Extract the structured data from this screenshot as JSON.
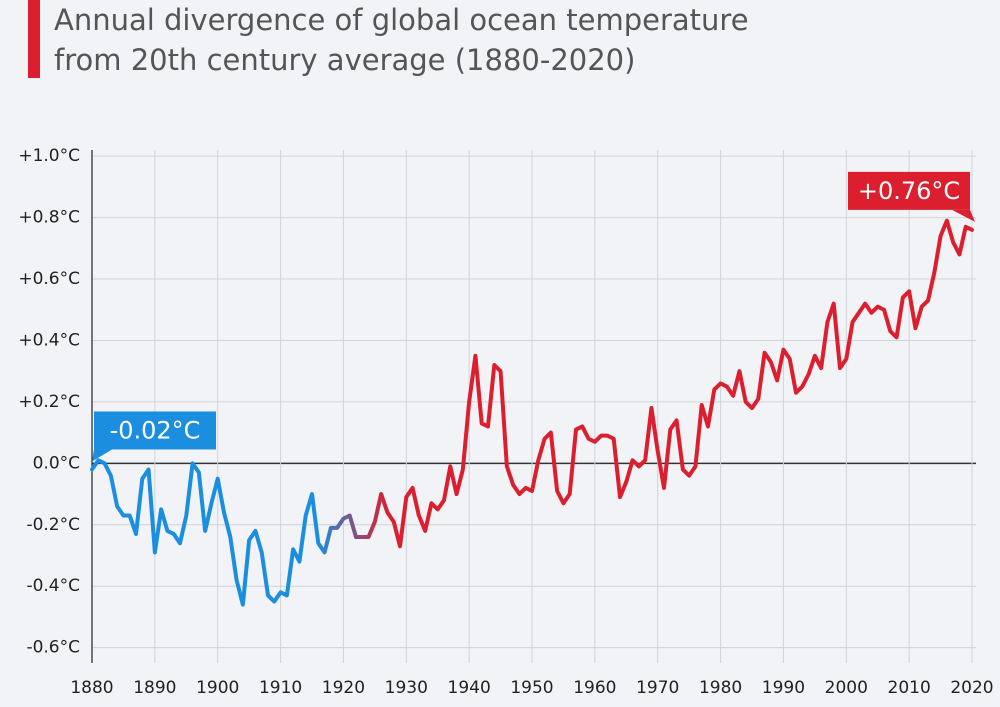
{
  "chart_data": {
    "type": "line",
    "title": [
      "Annual divergence of global ocean temperature",
      "from 20th century average (1880-2020)"
    ],
    "x": [
      1880,
      1881,
      1882,
      1883,
      1884,
      1885,
      1886,
      1887,
      1888,
      1889,
      1890,
      1891,
      1892,
      1893,
      1894,
      1895,
      1896,
      1897,
      1898,
      1899,
      1900,
      1901,
      1902,
      1903,
      1904,
      1905,
      1906,
      1907,
      1908,
      1909,
      1910,
      1911,
      1912,
      1913,
      1914,
      1915,
      1916,
      1917,
      1918,
      1919,
      1920,
      1921,
      1922,
      1923,
      1924,
      1925,
      1926,
      1927,
      1928,
      1929,
      1930,
      1931,
      1932,
      1933,
      1934,
      1935,
      1936,
      1937,
      1938,
      1939,
      1940,
      1941,
      1942,
      1943,
      1944,
      1945,
      1946,
      1947,
      1948,
      1949,
      1950,
      1951,
      1952,
      1953,
      1954,
      1955,
      1956,
      1957,
      1958,
      1959,
      1960,
      1961,
      1962,
      1963,
      1964,
      1965,
      1966,
      1967,
      1968,
      1969,
      1970,
      1971,
      1972,
      1973,
      1974,
      1975,
      1976,
      1977,
      1978,
      1979,
      1980,
      1981,
      1982,
      1983,
      1984,
      1985,
      1986,
      1987,
      1988,
      1989,
      1990,
      1991,
      1992,
      1993,
      1994,
      1995,
      1996,
      1997,
      1998,
      1999,
      2000,
      2001,
      2002,
      2003,
      2004,
      2005,
      2006,
      2007,
      2008,
      2009,
      2010,
      2011,
      2012,
      2013,
      2014,
      2015,
      2016,
      2017,
      2018,
      2019,
      2020
    ],
    "series": [
      {
        "gradient_colors": [
          "#1b8ee0",
          "#dc1f2e"
        ],
        "values": [
          -0.02,
          0.01,
          0.0,
          -0.04,
          -0.14,
          -0.17,
          -0.17,
          -0.23,
          -0.05,
          -0.02,
          -0.29,
          -0.15,
          -0.22,
          -0.23,
          -0.26,
          -0.17,
          0.0,
          -0.03,
          -0.22,
          -0.13,
          -0.05,
          -0.16,
          -0.24,
          -0.38,
          -0.46,
          -0.25,
          -0.22,
          -0.29,
          -0.43,
          -0.45,
          -0.42,
          -0.43,
          -0.28,
          -0.32,
          -0.17,
          -0.1,
          -0.26,
          -0.29,
          -0.21,
          -0.21,
          -0.18,
          -0.17,
          -0.24,
          -0.24,
          -0.24,
          -0.19,
          -0.1,
          -0.16,
          -0.19,
          -0.27,
          -0.11,
          -0.08,
          -0.17,
          -0.22,
          -0.13,
          -0.15,
          -0.12,
          -0.01,
          -0.1,
          -0.02,
          0.2,
          0.35,
          0.13,
          0.12,
          0.32,
          0.3,
          -0.01,
          -0.07,
          -0.1,
          -0.08,
          -0.09,
          0.01,
          0.08,
          0.1,
          -0.09,
          -0.13,
          -0.1,
          0.11,
          0.12,
          0.08,
          0.07,
          0.09,
          0.09,
          0.08,
          -0.11,
          -0.06,
          0.01,
          -0.01,
          0.01,
          0.18,
          0.04,
          -0.08,
          0.11,
          0.14,
          -0.02,
          -0.04,
          -0.01,
          0.19,
          0.12,
          0.24,
          0.26,
          0.25,
          0.22,
          0.3,
          0.2,
          0.18,
          0.21,
          0.36,
          0.33,
          0.27,
          0.37,
          0.34,
          0.23,
          0.25,
          0.29,
          0.35,
          0.31,
          0.46,
          0.52,
          0.31,
          0.34,
          0.46,
          0.49,
          0.52,
          0.49,
          0.51,
          0.5,
          0.43,
          0.41,
          0.54,
          0.56,
          0.44,
          0.51,
          0.53,
          0.62,
          0.74,
          0.79,
          0.72,
          0.68,
          0.77,
          0.76
        ]
      }
    ],
    "annotations": [
      {
        "text": "-0.02°C",
        "x": 1880,
        "color": "#1b8ee0"
      },
      {
        "text": "+0.76°C",
        "x": 2020,
        "color": "#dc1f2e"
      }
    ],
    "xlim": [
      1880,
      2020
    ],
    "xticks": [
      1880,
      1890,
      1900,
      1910,
      1920,
      1930,
      1940,
      1950,
      1960,
      1970,
      1980,
      1990,
      2000,
      2010,
      2020
    ],
    "ylim": [
      -0.65,
      1.02
    ],
    "yticks": [
      {
        "value": -0.6,
        "label": "-0.6°C"
      },
      {
        "value": -0.4,
        "label": "-0.4°C"
      },
      {
        "value": -0.2,
        "label": "-0.2°C"
      },
      {
        "value": 0,
        "label": "0.0°C"
      },
      {
        "value": 0.2,
        "label": "+0.2°C"
      },
      {
        "value": 0.4,
        "label": "+0.4°C"
      },
      {
        "value": 0.6,
        "label": "+0.6°C"
      },
      {
        "value": 0.8,
        "label": "+0.8°C"
      },
      {
        "value": 1,
        "label": "+1.0°C"
      }
    ],
    "grid": true
  }
}
